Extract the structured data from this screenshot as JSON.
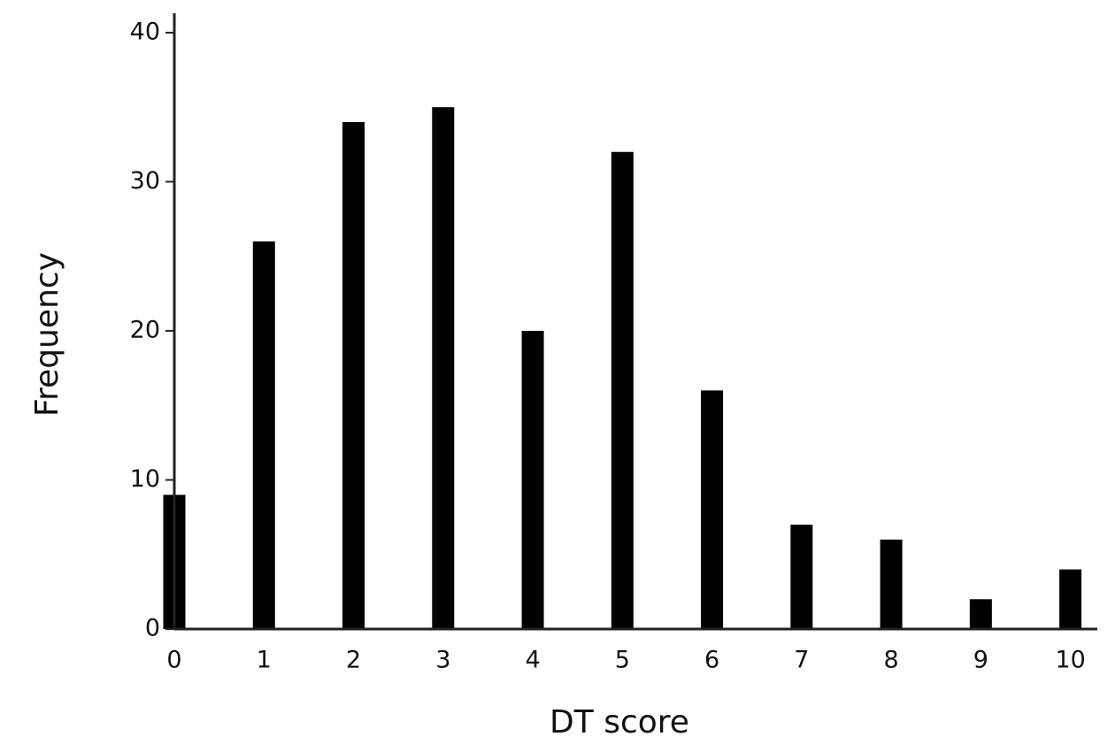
{
  "chart_data": {
    "type": "bar",
    "x_label": "DT score",
    "y_label": "Frequency",
    "x": [
      0,
      1,
      2,
      3,
      4,
      5,
      6,
      7,
      8,
      9,
      10
    ],
    "values": [
      9,
      26,
      34,
      35,
      20,
      32,
      16,
      7,
      6,
      2,
      4
    ],
    "color": "#000000",
    "xlim": [
      0,
      10.3
    ],
    "xticks": [
      0,
      1,
      2,
      3,
      4,
      5,
      6,
      7,
      8,
      9,
      10
    ],
    "ylim": [
      0,
      41.3
    ],
    "yticks": [
      0,
      10,
      20,
      30,
      40
    ],
    "grid": false
  }
}
